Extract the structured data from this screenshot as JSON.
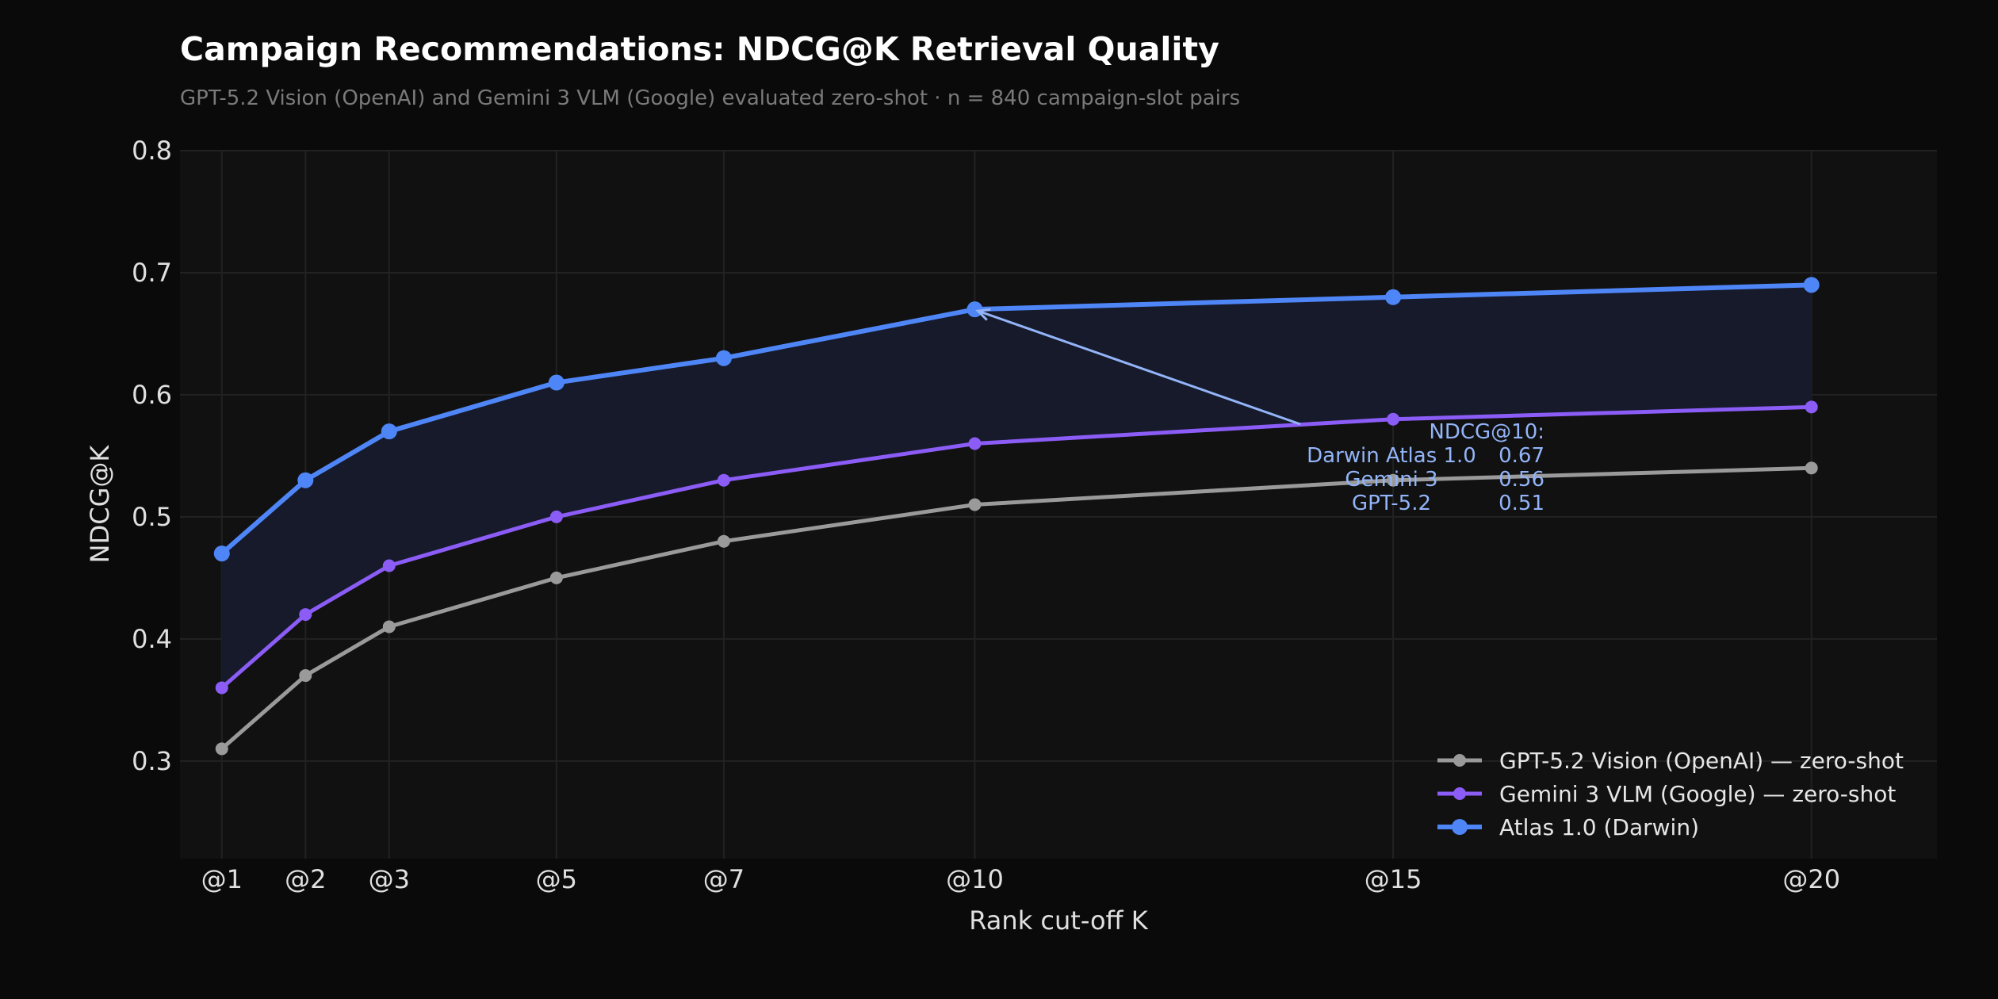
{
  "chart_data": {
    "type": "line",
    "title": "Campaign Recommendations: NDCG@K Retrieval Quality",
    "subtitle": "GPT-5.2 Vision (OpenAI) and Gemini 3 VLM (Google) evaluated zero-shot  ·  n = 840 campaign-slot pairs",
    "xlabel": "Rank cut-off K",
    "ylabel": "NDCG@K",
    "x": [
      1,
      2,
      3,
      5,
      7,
      10,
      15,
      20
    ],
    "x_tick_labels": [
      "@1",
      "@2",
      "@3",
      "@5",
      "@7",
      "@10",
      "@15",
      "@20"
    ],
    "xlim": [
      0.5,
      21.5
    ],
    "ylim": [
      0.22,
      0.8
    ],
    "y_ticks": [
      0.3,
      0.4,
      0.5,
      0.6,
      0.7,
      0.8
    ],
    "y_tick_labels": [
      "0.3",
      "0.4",
      "0.5",
      "0.6",
      "0.7",
      "0.8"
    ],
    "grid": true,
    "legend_placement": "bottom-right",
    "series": [
      {
        "name": "GPT-5.2 Vision  (OpenAI)  —  zero-shot",
        "color": "#9a9a9a",
        "values": [
          0.31,
          0.37,
          0.41,
          0.45,
          0.48,
          0.51,
          0.53,
          0.54
        ]
      },
      {
        "name": "Gemini 3 VLM  (Google)  —  zero-shot",
        "color": "#8b5cf6",
        "values": [
          0.36,
          0.42,
          0.46,
          0.5,
          0.53,
          0.56,
          0.58,
          0.59
        ]
      },
      {
        "name": "Atlas 1.0  (Darwin)",
        "color": "#4f86f7",
        "values": [
          0.47,
          0.53,
          0.57,
          0.61,
          0.63,
          0.67,
          0.68,
          0.69
        ]
      }
    ],
    "shaded_region": {
      "between": [
        "Atlas 1.0  (Darwin)",
        "Gemini 3 VLM  (Google)  —  zero-shot"
      ],
      "color": "#161a2a"
    },
    "annotation": {
      "target_x": 10,
      "target_y": 0.67,
      "color": "#93b4f8",
      "header": "NDCG@10:",
      "rows": [
        {
          "label": "Darwin Atlas 1.0",
          "value": "0.67"
        },
        {
          "label": "Gemini 3",
          "value": "0.56"
        },
        {
          "label": "GPT-5.2",
          "value": "0.51"
        }
      ]
    }
  }
}
